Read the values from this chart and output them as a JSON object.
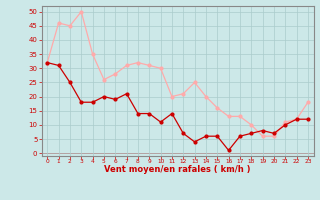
{
  "x": [
    0,
    1,
    2,
    3,
    4,
    5,
    6,
    7,
    8,
    9,
    10,
    11,
    12,
    13,
    14,
    15,
    16,
    17,
    18,
    19,
    20,
    21,
    22,
    23
  ],
  "wind_avg": [
    32,
    31,
    25,
    18,
    18,
    20,
    19,
    21,
    14,
    14,
    11,
    14,
    7,
    4,
    6,
    6,
    1,
    6,
    7,
    8,
    7,
    10,
    12,
    12
  ],
  "wind_gust": [
    32,
    46,
    45,
    50,
    35,
    26,
    28,
    31,
    32,
    31,
    30,
    20,
    21,
    25,
    20,
    16,
    13,
    13,
    10,
    6,
    6,
    11,
    12,
    18
  ],
  "avg_color": "#cc0000",
  "gust_color": "#ffaaaa",
  "bg_color": "#cce8e8",
  "grid_color": "#aacccc",
  "xlabel": "Vent moyen/en rafales ( km/h )",
  "xlabel_color": "#cc0000",
  "yticks": [
    0,
    5,
    10,
    15,
    20,
    25,
    30,
    35,
    40,
    45,
    50
  ],
  "ylim": [
    -1,
    52
  ],
  "xlim": [
    -0.5,
    23.5
  ],
  "tick_label_color": "#cc0000",
  "spine_color": "#888888"
}
